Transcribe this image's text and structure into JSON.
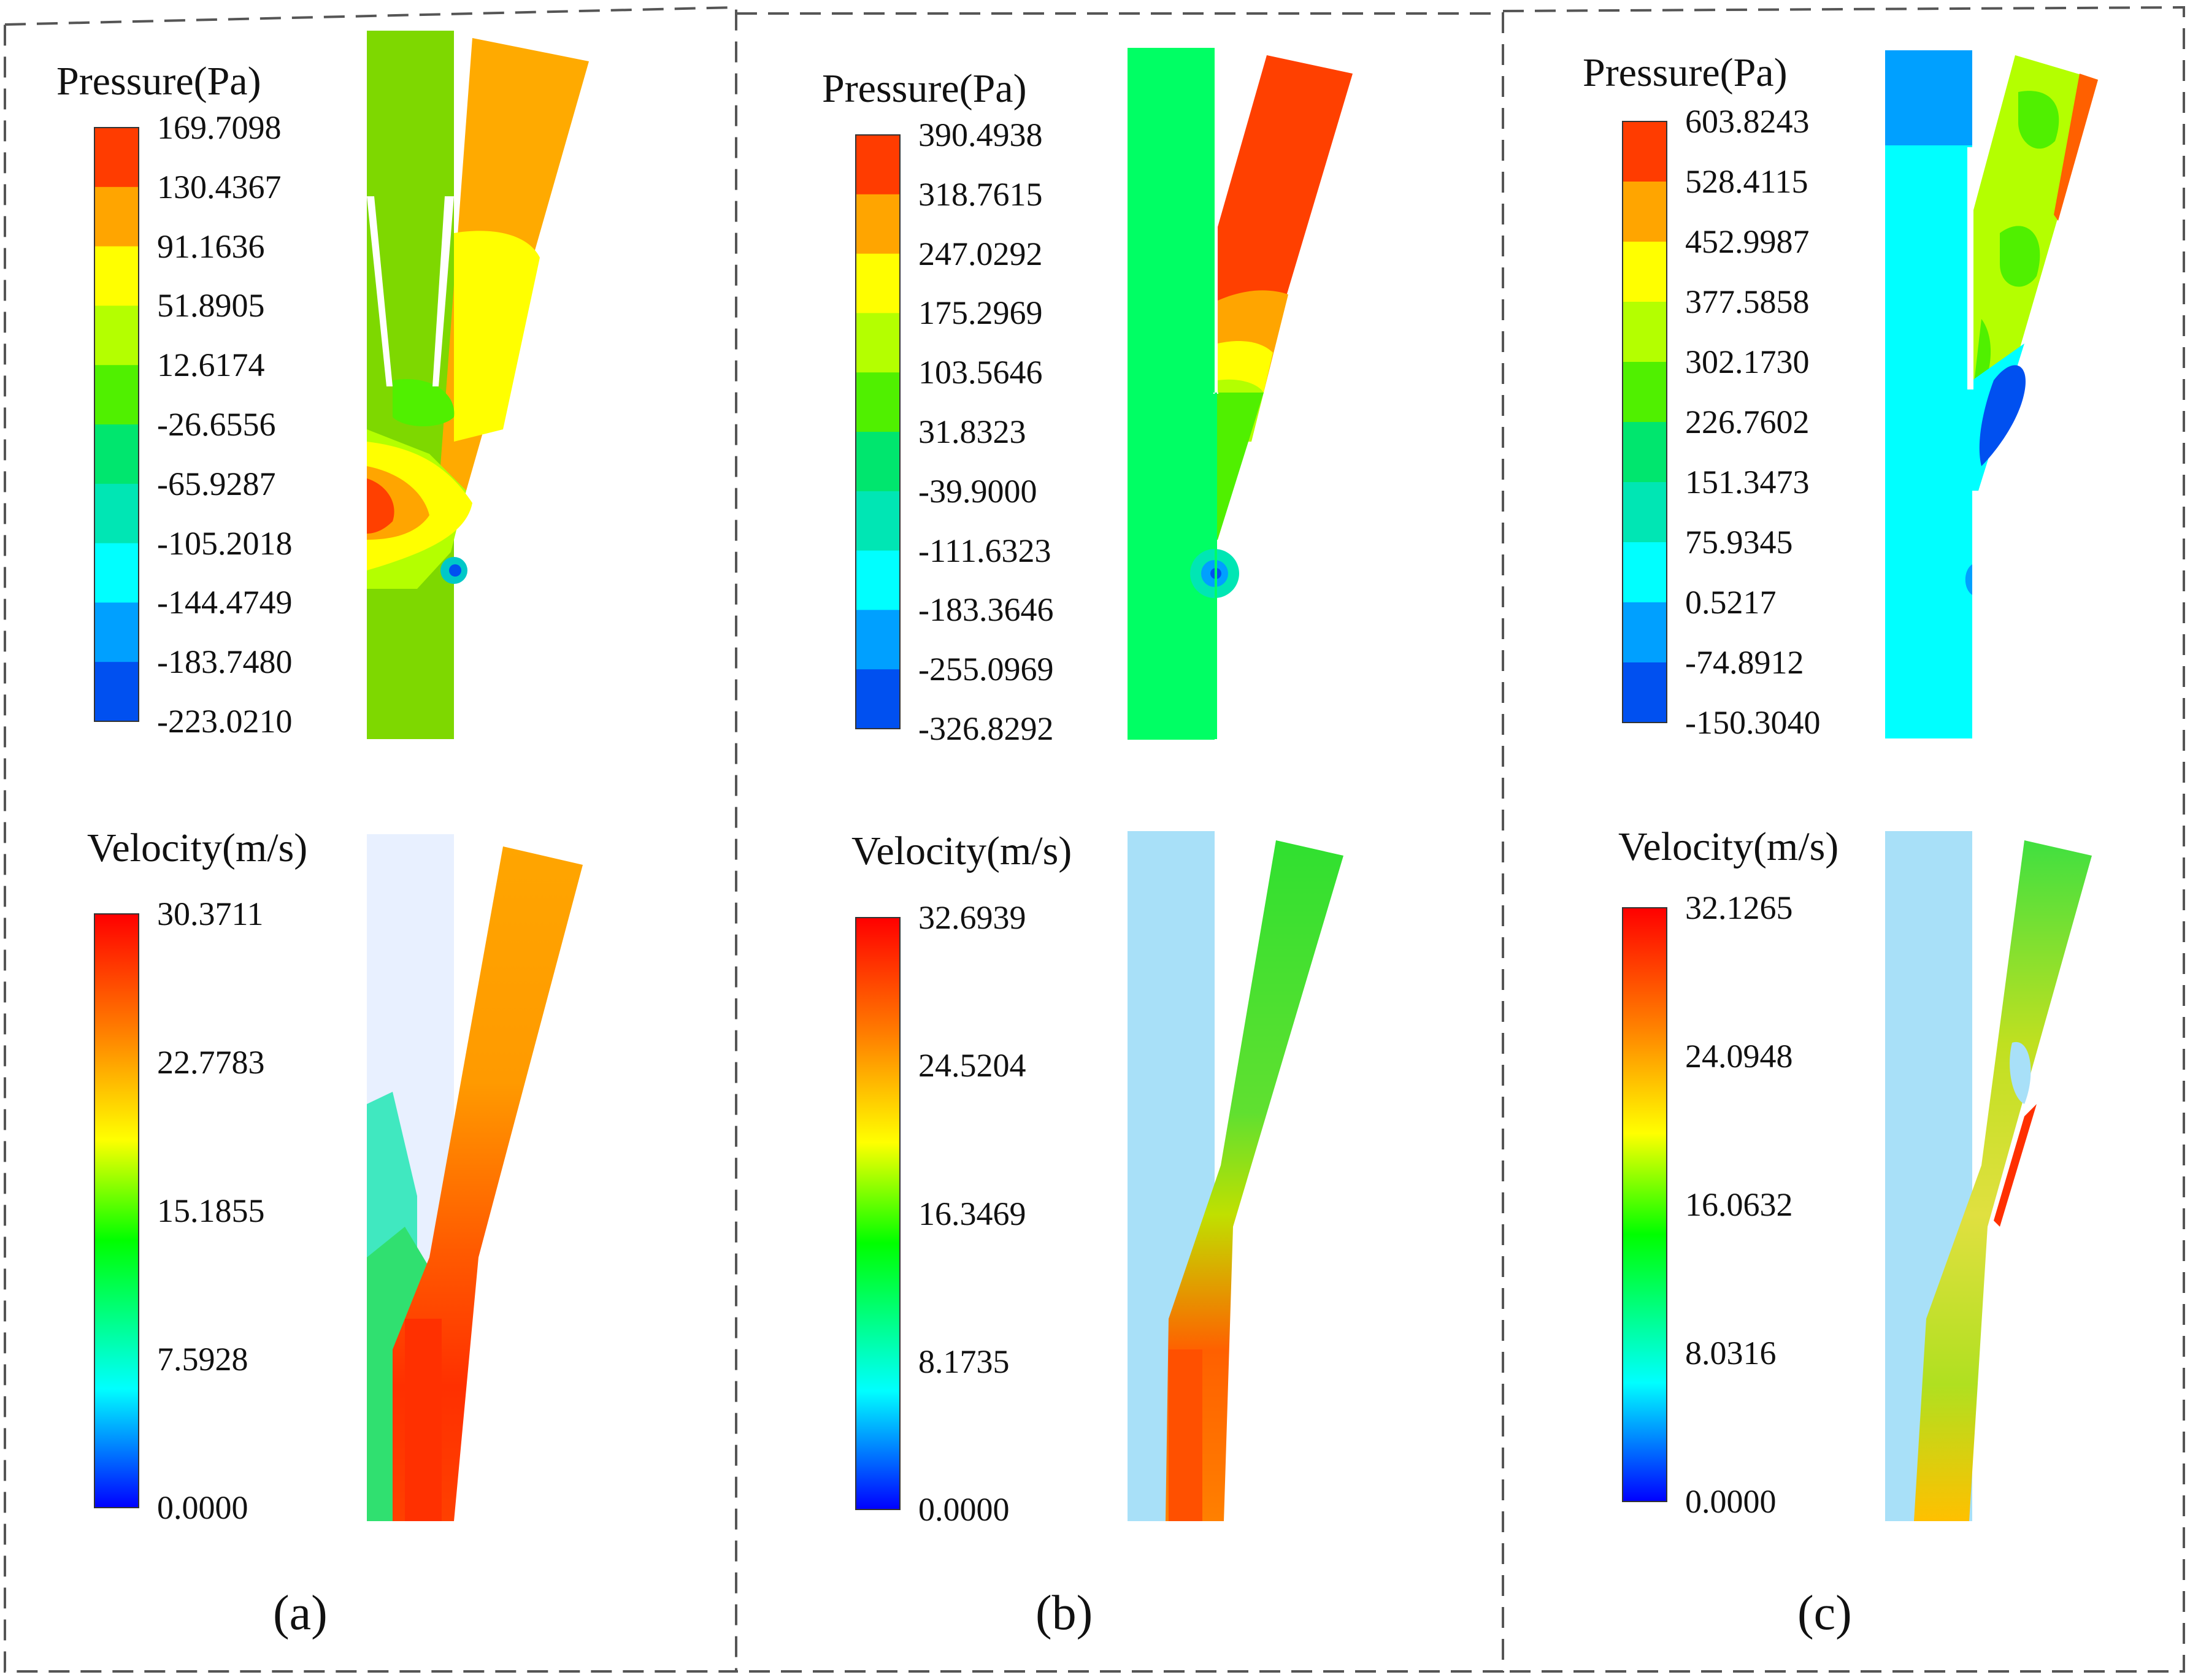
{
  "figure": {
    "panels": [
      {
        "caption": "(a)",
        "pressure": {
          "title": "Pressure(Pa)",
          "ticks": [
            "169.7098",
            "130.4367",
            "91.1636",
            "51.8905",
            "12.6174",
            "-26.6556",
            "-65.9287",
            "-105.2018",
            "-144.4749",
            "-183.7480",
            "-223.0210"
          ]
        },
        "velocity": {
          "title": "Velocity(m/s)",
          "ticks": [
            "30.3711",
            "22.7783",
            "15.1855",
            "7.5928",
            "0.0000"
          ]
        }
      },
      {
        "caption": "(b)",
        "pressure": {
          "title": "Pressure(Pa)",
          "ticks": [
            "390.4938",
            "318.7615",
            "247.0292",
            "175.2969",
            "103.5646",
            "31.8323",
            "-39.9000",
            "-111.6323",
            "-183.3646",
            "-255.0969",
            "-326.8292"
          ]
        },
        "velocity": {
          "title": "Velocity(m/s)",
          "ticks": [
            "32.6939",
            "24.5204",
            "16.3469",
            "8.1735",
            "0.0000"
          ]
        }
      },
      {
        "caption": "(c)",
        "pressure": {
          "title": "Pressure(Pa)",
          "ticks": [
            "603.8243",
            "528.4115",
            "452.9987",
            "377.5858",
            "302.1730",
            "226.7602",
            "151.3473",
            "75.9345",
            "0.5217",
            "-74.8912",
            "-150.3040"
          ]
        },
        "velocity": {
          "title": "Velocity(m/s)",
          "ticks": [
            "32.1265",
            "24.0948",
            "16.0632",
            "8.0316",
            "0.0000"
          ]
        }
      }
    ],
    "colors": {
      "pressure_bands": [
        "#ff3c00",
        "#ffa500",
        "#ffff00",
        "#b4ff00",
        "#50f000",
        "#00e66e",
        "#00e6b4",
        "#00ffff",
        "#00a0ff",
        "#0050f0"
      ],
      "velocity_gradient": [
        "#0000ff",
        "#00ffff",
        "#00ff00",
        "#ffff00",
        "#ff8000",
        "#ff0000"
      ],
      "dash_border": "#666666"
    }
  }
}
